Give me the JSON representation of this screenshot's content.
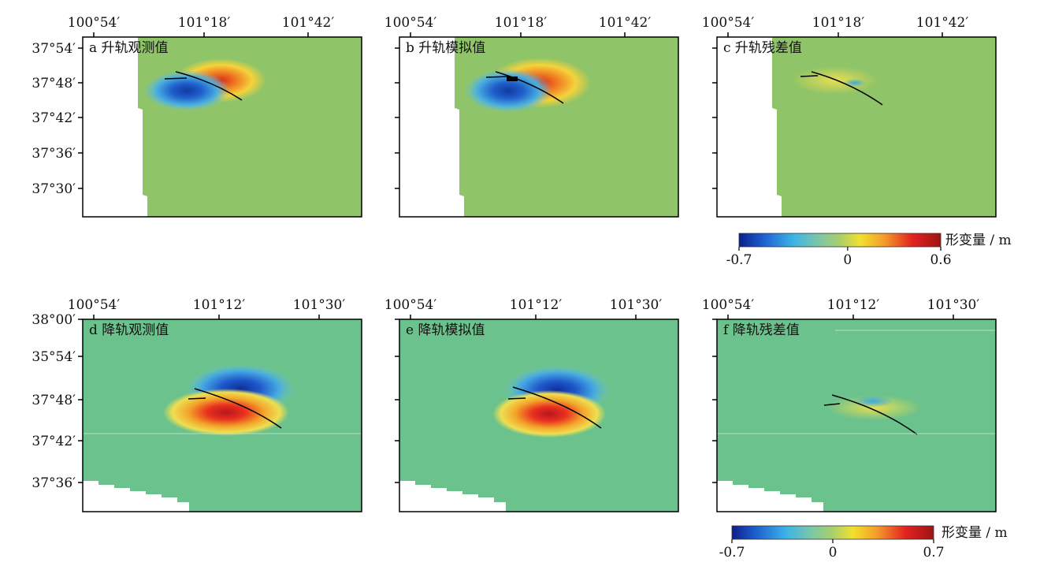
{
  "panels": [
    {
      "label": "a 升轨观测值",
      "type": "observed",
      "track": "ascending",
      "color_scale": "asc",
      "x_ticks": [
        "100°54′",
        "101°18′",
        "101°42′"
      ],
      "y_ticks": [
        "37°54′",
        "37°48′",
        "37°42′",
        "37°36′",
        "37°30′"
      ]
    },
    {
      "label": "b 升轨模拟值",
      "type": "modeled",
      "track": "ascending",
      "color_scale": "asc",
      "x_ticks": [
        "100°54′",
        "101°18′",
        "101°42′"
      ],
      "y_ticks": []
    },
    {
      "label": "c 升轨残差值",
      "type": "residual",
      "track": "ascending",
      "color_scale": "asc",
      "x_ticks": [
        "100°54′",
        "101°18′",
        "101°42′"
      ],
      "y_ticks": []
    },
    {
      "label": "d 降轨观测值",
      "type": "observed",
      "track": "descending",
      "color_scale": "desc",
      "x_ticks": [
        "100°54′",
        "101°12′",
        "101°30′"
      ],
      "y_ticks": [
        "38°00′",
        "35°54′",
        "37°48′",
        "37°42′",
        "37°36′"
      ]
    },
    {
      "label": "e 降轨模拟值",
      "type": "modeled",
      "track": "descending",
      "color_scale": "desc",
      "x_ticks": [
        "100°54′",
        "101°12′",
        "101°30′"
      ],
      "y_ticks": []
    },
    {
      "label": "f 降轨残差值",
      "type": "residual",
      "track": "descending",
      "color_scale": "desc",
      "x_ticks": [
        "100°54′",
        "101°12′",
        "101°30′"
      ],
      "y_ticks": []
    }
  ],
  "colorbars": {
    "asc": {
      "title": "形变量 / m",
      "min": -0.7,
      "max": 0.6,
      "tick_labels": [
        "-0.7",
        "0",
        "0.6"
      ]
    },
    "desc": {
      "title": "形变量 / m",
      "min": -0.7,
      "max": 0.7,
      "tick_labels": [
        "-0.7",
        "0",
        "0.7"
      ]
    }
  },
  "colors": {
    "background_field": "#8fc468",
    "desc_background_field": "#6cc28c",
    "negative_extreme": "#1c3aa6",
    "positive_extreme": "#b01e1e",
    "fault_trace": "#000000"
  }
}
